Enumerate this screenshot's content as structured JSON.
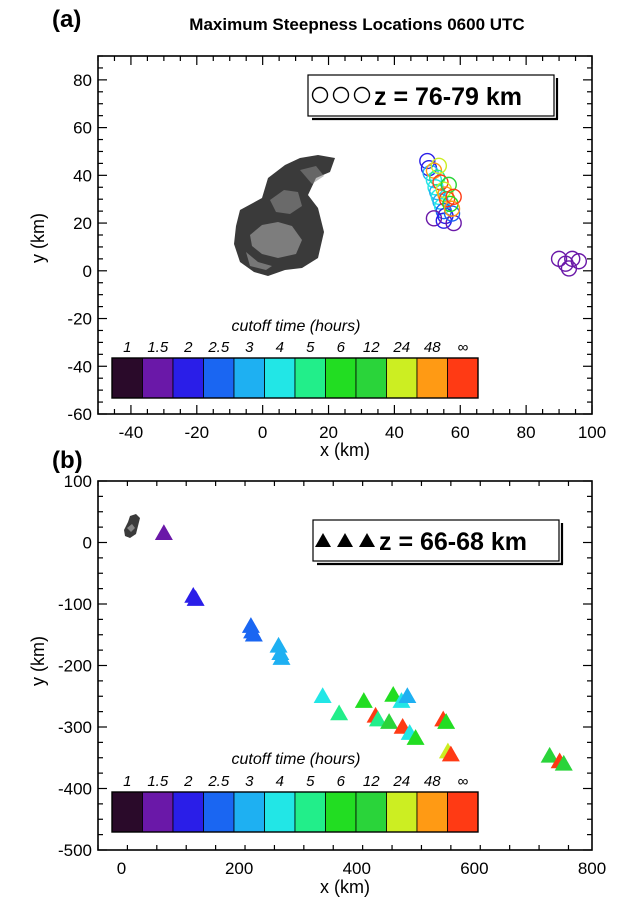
{
  "figure": {
    "title": "Maximum Steepness Locations 0600 UTC",
    "panel_a_label": "(a)",
    "panel_b_label": "(b)"
  },
  "colorbar": {
    "title": "cutoff time (hours)",
    "labels": [
      "1",
      "1.5",
      "2",
      "2.5",
      "3",
      "4",
      "5",
      "6",
      "12",
      "24",
      "48",
      "∞"
    ],
    "colors": [
      "#2a0a2a",
      "#6a18a8",
      "#2a1ee8",
      "#1a66f2",
      "#1eb0f2",
      "#22e6e6",
      "#22ee8a",
      "#22dd22",
      "#2ad43a",
      "#ccee22",
      "#ff9a14",
      "#ff3a14"
    ]
  },
  "chart_data": [
    {
      "type": "scatter",
      "panel": "(a)",
      "marker": "circle",
      "legend": "z = 76-79 km",
      "xlabel": "x (km)",
      "ylabel": "y (km)",
      "xlim": [
        -50,
        100
      ],
      "ylim": [
        -60,
        90
      ],
      "xticks": [
        -40,
        -20,
        0,
        20,
        40,
        60,
        80,
        100
      ],
      "yticks": [
        -60,
        -40,
        -20,
        0,
        20,
        40,
        60,
        80
      ],
      "points": [
        {
          "x": 50,
          "y": 46,
          "c": 2
        },
        {
          "x": 50.5,
          "y": 43,
          "c": 2
        },
        {
          "x": 51,
          "y": 41,
          "c": 4
        },
        {
          "x": 52,
          "y": 38,
          "c": 5
        },
        {
          "x": 52.5,
          "y": 35,
          "c": 5
        },
        {
          "x": 53,
          "y": 33,
          "c": 4
        },
        {
          "x": 53.5,
          "y": 31,
          "c": 5
        },
        {
          "x": 54,
          "y": 29,
          "c": 4
        },
        {
          "x": 54.5,
          "y": 27,
          "c": 5
        },
        {
          "x": 55,
          "y": 25,
          "c": 3
        },
        {
          "x": 55.5,
          "y": 23,
          "c": 2
        },
        {
          "x": 52,
          "y": 22,
          "c": 1
        },
        {
          "x": 55,
          "y": 21,
          "c": 2
        },
        {
          "x": 58,
          "y": 20,
          "c": 1
        },
        {
          "x": 57.5,
          "y": 24,
          "c": 3
        },
        {
          "x": 52,
          "y": 42,
          "c": 10
        },
        {
          "x": 53,
          "y": 39,
          "c": 6
        },
        {
          "x": 54,
          "y": 37,
          "c": 11
        },
        {
          "x": 55,
          "y": 34,
          "c": 9
        },
        {
          "x": 55.5,
          "y": 32,
          "c": 10
        },
        {
          "x": 56,
          "y": 30,
          "c": 11
        },
        {
          "x": 57,
          "y": 28,
          "c": 7
        },
        {
          "x": 57.5,
          "y": 26,
          "c": 10
        },
        {
          "x": 56.5,
          "y": 36,
          "c": 8
        },
        {
          "x": 53.5,
          "y": 44,
          "c": 9
        },
        {
          "x": 58,
          "y": 31,
          "c": 11
        },
        {
          "x": 90,
          "y": 5,
          "c": 1
        },
        {
          "x": 92,
          "y": 3,
          "c": 1
        },
        {
          "x": 94,
          "y": 5,
          "c": 1
        },
        {
          "x": 96,
          "y": 4,
          "c": 1
        },
        {
          "x": 93,
          "y": 1,
          "c": 1
        }
      ]
    },
    {
      "type": "scatter",
      "panel": "(b)",
      "marker": "triangle",
      "legend": "z = 66-68 km",
      "xlabel": "x (km)",
      "ylabel": "y (km)",
      "xlim": [
        -40,
        800
      ],
      "ylim": [
        -500,
        100
      ],
      "xticks": [
        0,
        200,
        400,
        600,
        800
      ],
      "yticks": [
        -500,
        -400,
        -300,
        -200,
        -100,
        0,
        100
      ],
      "points": [
        {
          "x": 72,
          "y": 15,
          "c": 1
        },
        {
          "x": 122,
          "y": -87,
          "c": 2
        },
        {
          "x": 126,
          "y": -92,
          "c": 2
        },
        {
          "x": 220,
          "y": -136,
          "c": 3
        },
        {
          "x": 222,
          "y": -145,
          "c": 3
        },
        {
          "x": 225,
          "y": -150,
          "c": 3
        },
        {
          "x": 267,
          "y": -168,
          "c": 4
        },
        {
          "x": 270,
          "y": -180,
          "c": 4
        },
        {
          "x": 272,
          "y": -188,
          "c": 4
        },
        {
          "x": 342,
          "y": -250,
          "c": 5
        },
        {
          "x": 370,
          "y": -278,
          "c": 6
        },
        {
          "x": 412,
          "y": -258,
          "c": 7
        },
        {
          "x": 432,
          "y": -282,
          "c": 11
        },
        {
          "x": 436,
          "y": -288,
          "c": 6
        },
        {
          "x": 455,
          "y": -292,
          "c": 8
        },
        {
          "x": 462,
          "y": -248,
          "c": 7
        },
        {
          "x": 476,
          "y": -258,
          "c": 5
        },
        {
          "x": 486,
          "y": -250,
          "c": 4
        },
        {
          "x": 478,
          "y": -300,
          "c": 11
        },
        {
          "x": 490,
          "y": -310,
          "c": 5
        },
        {
          "x": 500,
          "y": -318,
          "c": 7
        },
        {
          "x": 547,
          "y": -288,
          "c": 11
        },
        {
          "x": 552,
          "y": -292,
          "c": 7
        },
        {
          "x": 555,
          "y": -340,
          "c": 9
        },
        {
          "x": 560,
          "y": -345,
          "c": 11
        },
        {
          "x": 728,
          "y": -347,
          "c": 8
        },
        {
          "x": 745,
          "y": -356,
          "c": 11
        },
        {
          "x": 752,
          "y": -360,
          "c": 8
        }
      ]
    }
  ]
}
